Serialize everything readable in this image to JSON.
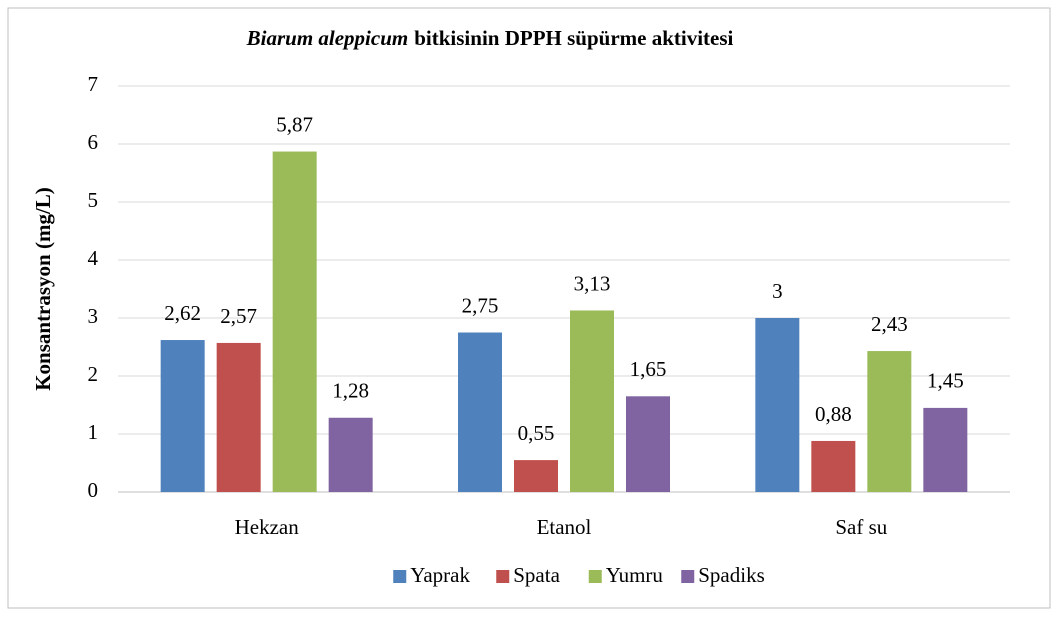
{
  "chart_data": {
    "type": "bar",
    "title": {
      "italic": "Biarum aleppicum",
      "bold": "bitkisinin DPPH süpürme aktivitesi"
    },
    "y_label": "Konsantrasyon (mg/L)",
    "categories": [
      "Hekzan",
      "Etanol",
      "Saf su"
    ],
    "series": [
      {
        "name": "Yaprak",
        "color": "#4f81bd",
        "values": [
          2.62,
          2.75,
          3
        ],
        "value_labels": [
          "2,62",
          "2,75",
          "3"
        ]
      },
      {
        "name": "Spata",
        "color": "#c0504d",
        "values": [
          2.57,
          0.55,
          0.88
        ],
        "value_labels": [
          "2,57",
          "0,55",
          "0,88"
        ]
      },
      {
        "name": "Yumru",
        "color": "#9bbb59",
        "values": [
          5.87,
          3.13,
          2.43
        ],
        "value_labels": [
          "5,87",
          "3,13",
          "2,43"
        ]
      },
      {
        "name": "Spadiks",
        "color": "#8064a2",
        "values": [
          1.28,
          1.65,
          1.45
        ],
        "value_labels": [
          "1,28",
          "1,65",
          "1,45"
        ]
      }
    ],
    "ylim": [
      0,
      7
    ],
    "yticks": [
      0,
      1,
      2,
      3,
      4,
      5,
      6,
      7
    ],
    "grid": true,
    "legend": "bottom"
  }
}
